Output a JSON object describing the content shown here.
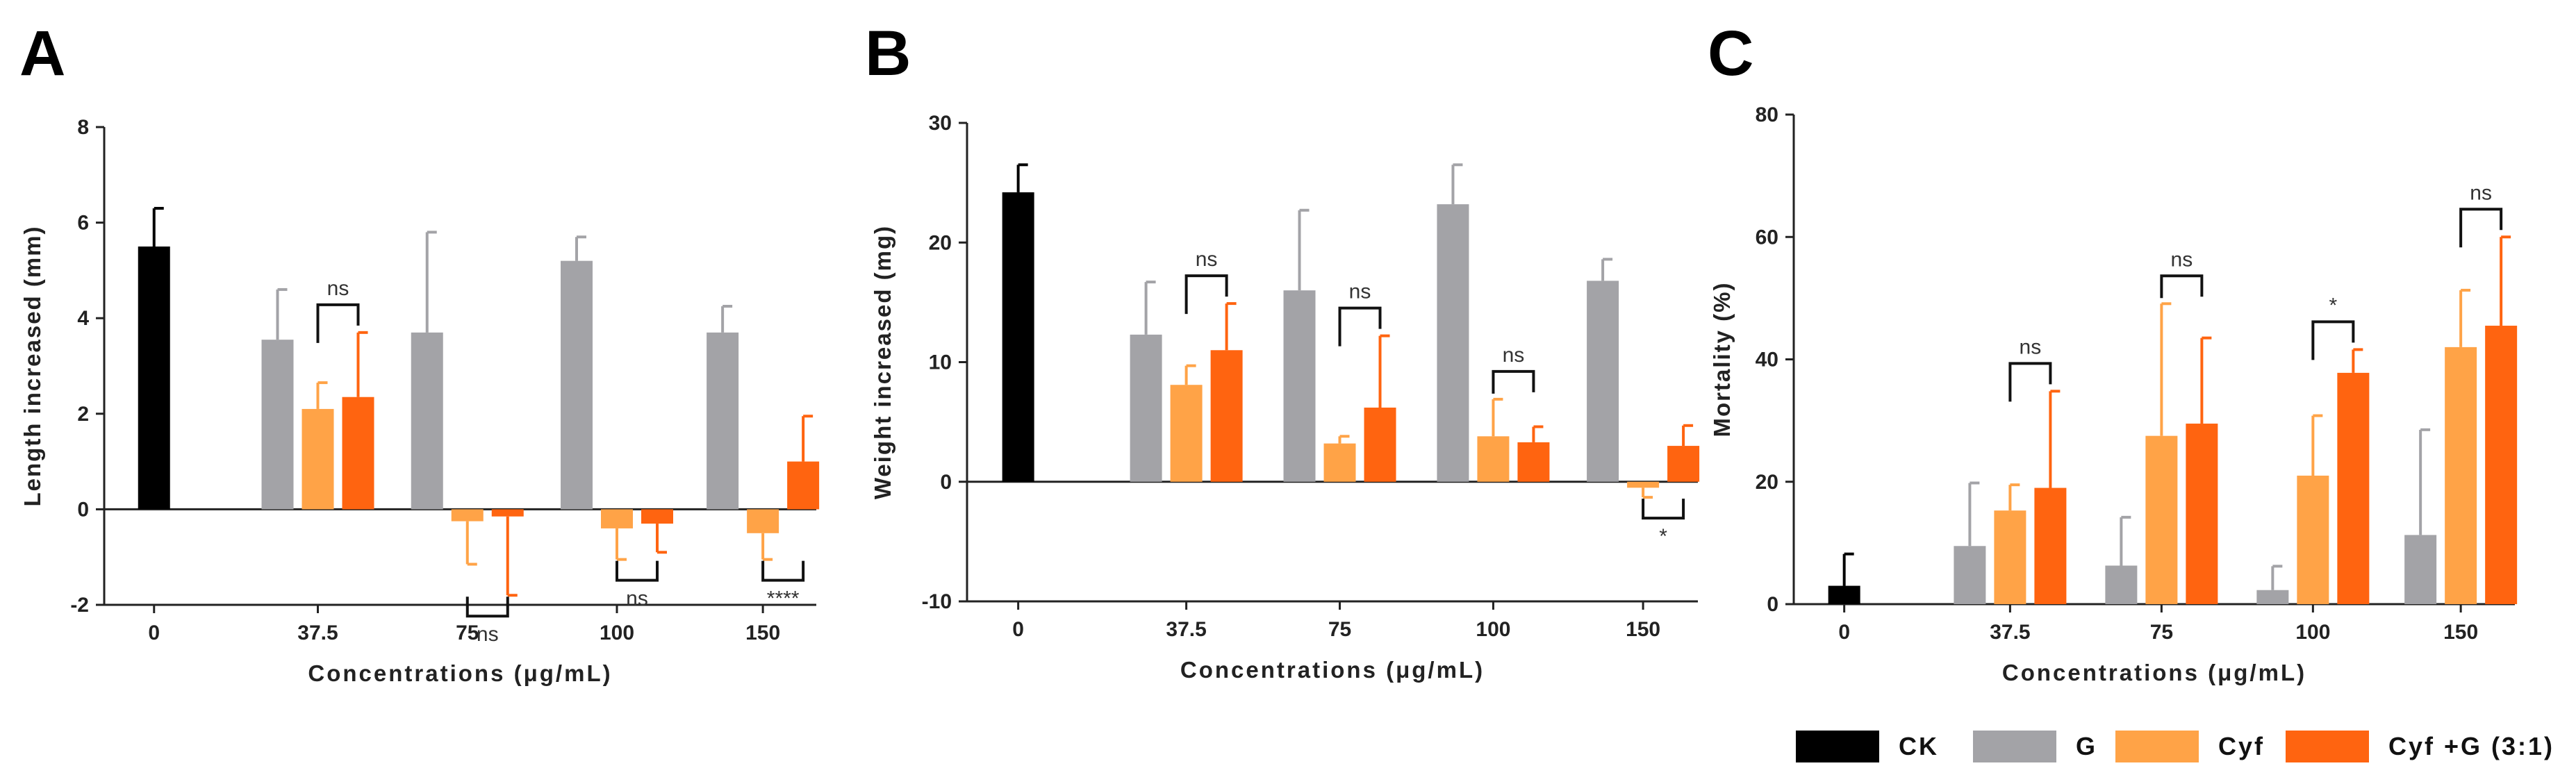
{
  "legend": {
    "items": [
      {
        "label": "CK",
        "color": "#000000"
      },
      {
        "label": "G",
        "color": "#a3a3a7"
      },
      {
        "label": "Cyf",
        "color": "#ffa347"
      },
      {
        "label": "Cyf +G (3:1)",
        "color": "#ff6410"
      }
    ]
  },
  "chart_data": [
    {
      "type": "bar",
      "panel_label": "A",
      "xlabel": "Concentrations (μg/mL)",
      "ylabel": "Length increased (mm)",
      "ylim": [
        -2,
        8
      ],
      "yticks": [
        -2,
        0,
        2,
        4,
        6,
        8
      ],
      "categories": [
        "0",
        "37.5",
        "75",
        "100",
        "150"
      ],
      "bars": [
        {
          "series": "CK",
          "category": "0",
          "value": 5.5,
          "error": 0.8
        },
        {
          "series": "G",
          "category": "37.5",
          "value": 3.55,
          "error": 1.05
        },
        {
          "series": "Cyf",
          "category": "37.5",
          "value": 2.1,
          "error": 0.55
        },
        {
          "series": "Cyf +G (3:1)",
          "category": "37.5",
          "value": 2.35,
          "error": 1.35
        },
        {
          "series": "G",
          "category": "75",
          "value": 3.7,
          "error": 2.1
        },
        {
          "series": "Cyf",
          "category": "75",
          "value": -0.25,
          "error": 0.9
        },
        {
          "series": "Cyf +G (3:1)",
          "category": "75",
          "value": -0.15,
          "error": 1.65
        },
        {
          "series": "G",
          "category": "100",
          "value": 5.2,
          "error": 0.5
        },
        {
          "series": "Cyf",
          "category": "100",
          "value": -0.4,
          "error": 0.65
        },
        {
          "series": "Cyf +G (3:1)",
          "category": "100",
          "value": -0.3,
          "error": 0.6
        },
        {
          "series": "G",
          "category": "150",
          "value": 3.7,
          "error": 0.55
        },
        {
          "series": "Cyf",
          "category": "150",
          "value": -0.5,
          "error": 0.55
        },
        {
          "series": "Cyf +G (3:1)",
          "category": "150",
          "value": 1.0,
          "error": 0.95
        }
      ],
      "significance": [
        {
          "category": "37.5",
          "label": "ns",
          "side": "above"
        },
        {
          "category": "75",
          "label": "ns",
          "side": "below"
        },
        {
          "category": "100",
          "label": "ns",
          "side": "below"
        },
        {
          "category": "150",
          "label": "****",
          "side": "below"
        }
      ]
    },
    {
      "type": "bar",
      "panel_label": "B",
      "xlabel": "Concentrations (μg/mL)",
      "ylabel": "Weight increased (mg)",
      "ylim": [
        -10,
        30
      ],
      "yticks": [
        -10,
        0,
        10,
        20,
        30
      ],
      "categories": [
        "0",
        "37.5",
        "75",
        "100",
        "150"
      ],
      "bars": [
        {
          "series": "CK",
          "category": "0",
          "value": 24.2,
          "error": 2.3
        },
        {
          "series": "G",
          "category": "37.5",
          "value": 12.3,
          "error": 4.4
        },
        {
          "series": "Cyf",
          "category": "37.5",
          "value": 8.1,
          "error": 1.6
        },
        {
          "series": "Cyf +G (3:1)",
          "category": "37.5",
          "value": 11.0,
          "error": 3.9
        },
        {
          "series": "G",
          "category": "75",
          "value": 16.0,
          "error": 6.7
        },
        {
          "series": "Cyf",
          "category": "75",
          "value": 3.2,
          "error": 0.6
        },
        {
          "series": "Cyf +G (3:1)",
          "category": "75",
          "value": 6.2,
          "error": 6.0
        },
        {
          "series": "G",
          "category": "100",
          "value": 23.2,
          "error": 3.3
        },
        {
          "series": "Cyf",
          "category": "100",
          "value": 3.8,
          "error": 3.1
        },
        {
          "series": "Cyf +G (3:1)",
          "category": "100",
          "value": 3.3,
          "error": 1.3
        },
        {
          "series": "G",
          "category": "150",
          "value": 16.8,
          "error": 1.8
        },
        {
          "series": "Cyf",
          "category": "150",
          "value": -0.5,
          "error": 0.8
        },
        {
          "series": "Cyf +G (3:1)",
          "category": "150",
          "value": 3.0,
          "error": 1.7
        }
      ],
      "significance": [
        {
          "category": "37.5",
          "label": "ns",
          "side": "above"
        },
        {
          "category": "75",
          "label": "ns",
          "side": "above"
        },
        {
          "category": "100",
          "label": "ns",
          "side": "above"
        },
        {
          "category": "150",
          "label": "*",
          "side": "below"
        }
      ]
    },
    {
      "type": "bar",
      "panel_label": "C",
      "xlabel": "Concentrations (μg/mL)",
      "ylabel": "Mortality (%)",
      "ylim": [
        0,
        80
      ],
      "yticks": [
        0,
        20,
        40,
        60,
        80
      ],
      "categories": [
        "0",
        "37.5",
        "75",
        "100",
        "150"
      ],
      "bars": [
        {
          "series": "CK",
          "category": "0",
          "value": 3.0,
          "error": 5.2
        },
        {
          "series": "G",
          "category": "37.5",
          "value": 9.5,
          "error": 10.3
        },
        {
          "series": "Cyf",
          "category": "37.5",
          "value": 15.3,
          "error": 4.2
        },
        {
          "series": "Cyf +G (3:1)",
          "category": "37.5",
          "value": 19.0,
          "error": 15.8
        },
        {
          "series": "G",
          "category": "75",
          "value": 6.3,
          "error": 7.9
        },
        {
          "series": "Cyf",
          "category": "75",
          "value": 27.5,
          "error": 21.6
        },
        {
          "series": "Cyf +G (3:1)",
          "category": "75",
          "value": 29.5,
          "error": 14.0
        },
        {
          "series": "G",
          "category": "100",
          "value": 2.3,
          "error": 3.9
        },
        {
          "series": "Cyf",
          "category": "100",
          "value": 21.0,
          "error": 9.8
        },
        {
          "series": "Cyf +G (3:1)",
          "category": "100",
          "value": 37.8,
          "error": 3.8
        },
        {
          "series": "G",
          "category": "150",
          "value": 11.3,
          "error": 17.2
        },
        {
          "series": "Cyf",
          "category": "150",
          "value": 42.0,
          "error": 9.3
        },
        {
          "series": "Cyf +G (3:1)",
          "category": "150",
          "value": 45.5,
          "error": 14.5
        }
      ],
      "significance": [
        {
          "category": "37.5",
          "label": "ns",
          "side": "above"
        },
        {
          "category": "75",
          "label": "ns",
          "side": "above"
        },
        {
          "category": "100",
          "label": "*",
          "side": "above"
        },
        {
          "category": "150",
          "label": "ns",
          "side": "above"
        }
      ]
    }
  ]
}
